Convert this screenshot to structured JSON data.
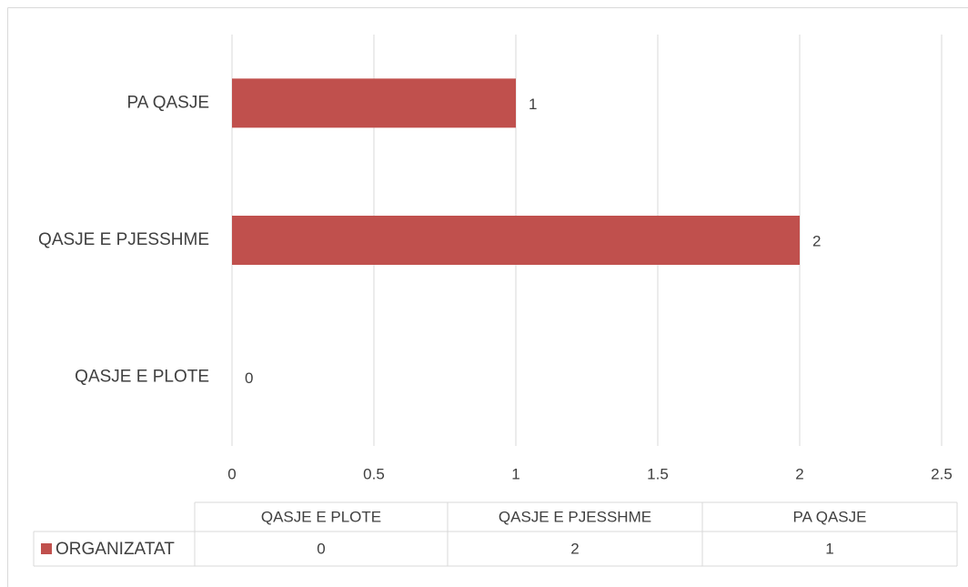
{
  "chart_data": {
    "type": "bar",
    "orientation": "horizontal",
    "categories": [
      "QASJE E PLOTE",
      "QASJE E PJESSHME",
      "PA QASJE"
    ],
    "series": [
      {
        "name": "ORGANIZATAT",
        "color": "#c0504d",
        "values": [
          0,
          2,
          1
        ]
      }
    ],
    "xlim": [
      0,
      2.5
    ],
    "xticks": [
      0,
      0.5,
      1,
      1.5,
      2,
      2.5
    ],
    "grid": true,
    "data_table": true
  }
}
